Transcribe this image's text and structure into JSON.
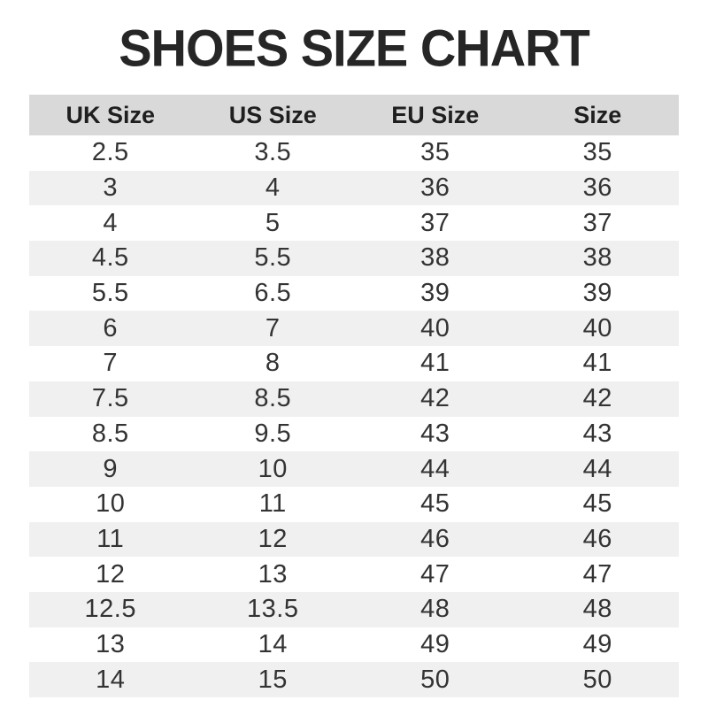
{
  "title": "SHOES SIZE CHART",
  "colors": {
    "header_bg": "#d9d9d9",
    "stripe_bg": "#f0f0f0",
    "row_bg": "#ffffff",
    "title_text": "#262626",
    "cell_text": "#333333"
  },
  "table": {
    "headers": [
      "UK Size",
      "US Size",
      "EU Size",
      "Size"
    ]
  },
  "chart_data": {
    "type": "table",
    "title": "SHOES SIZE CHART",
    "columns": [
      "UK Size",
      "US Size",
      "EU Size",
      "Size"
    ],
    "rows": [
      [
        "2.5",
        "3.5",
        "35",
        "35"
      ],
      [
        "3",
        "4",
        "36",
        "36"
      ],
      [
        "4",
        "5",
        "37",
        "37"
      ],
      [
        "4.5",
        "5.5",
        "38",
        "38"
      ],
      [
        "5.5",
        "6.5",
        "39",
        "39"
      ],
      [
        "6",
        "7",
        "40",
        "40"
      ],
      [
        "7",
        "8",
        "41",
        "41"
      ],
      [
        "7.5",
        "8.5",
        "42",
        "42"
      ],
      [
        "8.5",
        "9.5",
        "43",
        "43"
      ],
      [
        "9",
        "10",
        "44",
        "44"
      ],
      [
        "10",
        "11",
        "45",
        "45"
      ],
      [
        "11",
        "12",
        "46",
        "46"
      ],
      [
        "12",
        "13",
        "47",
        "47"
      ],
      [
        "12.5",
        "13.5",
        "48",
        "48"
      ],
      [
        "13",
        "14",
        "49",
        "49"
      ],
      [
        "14",
        "15",
        "50",
        "50"
      ]
    ]
  }
}
